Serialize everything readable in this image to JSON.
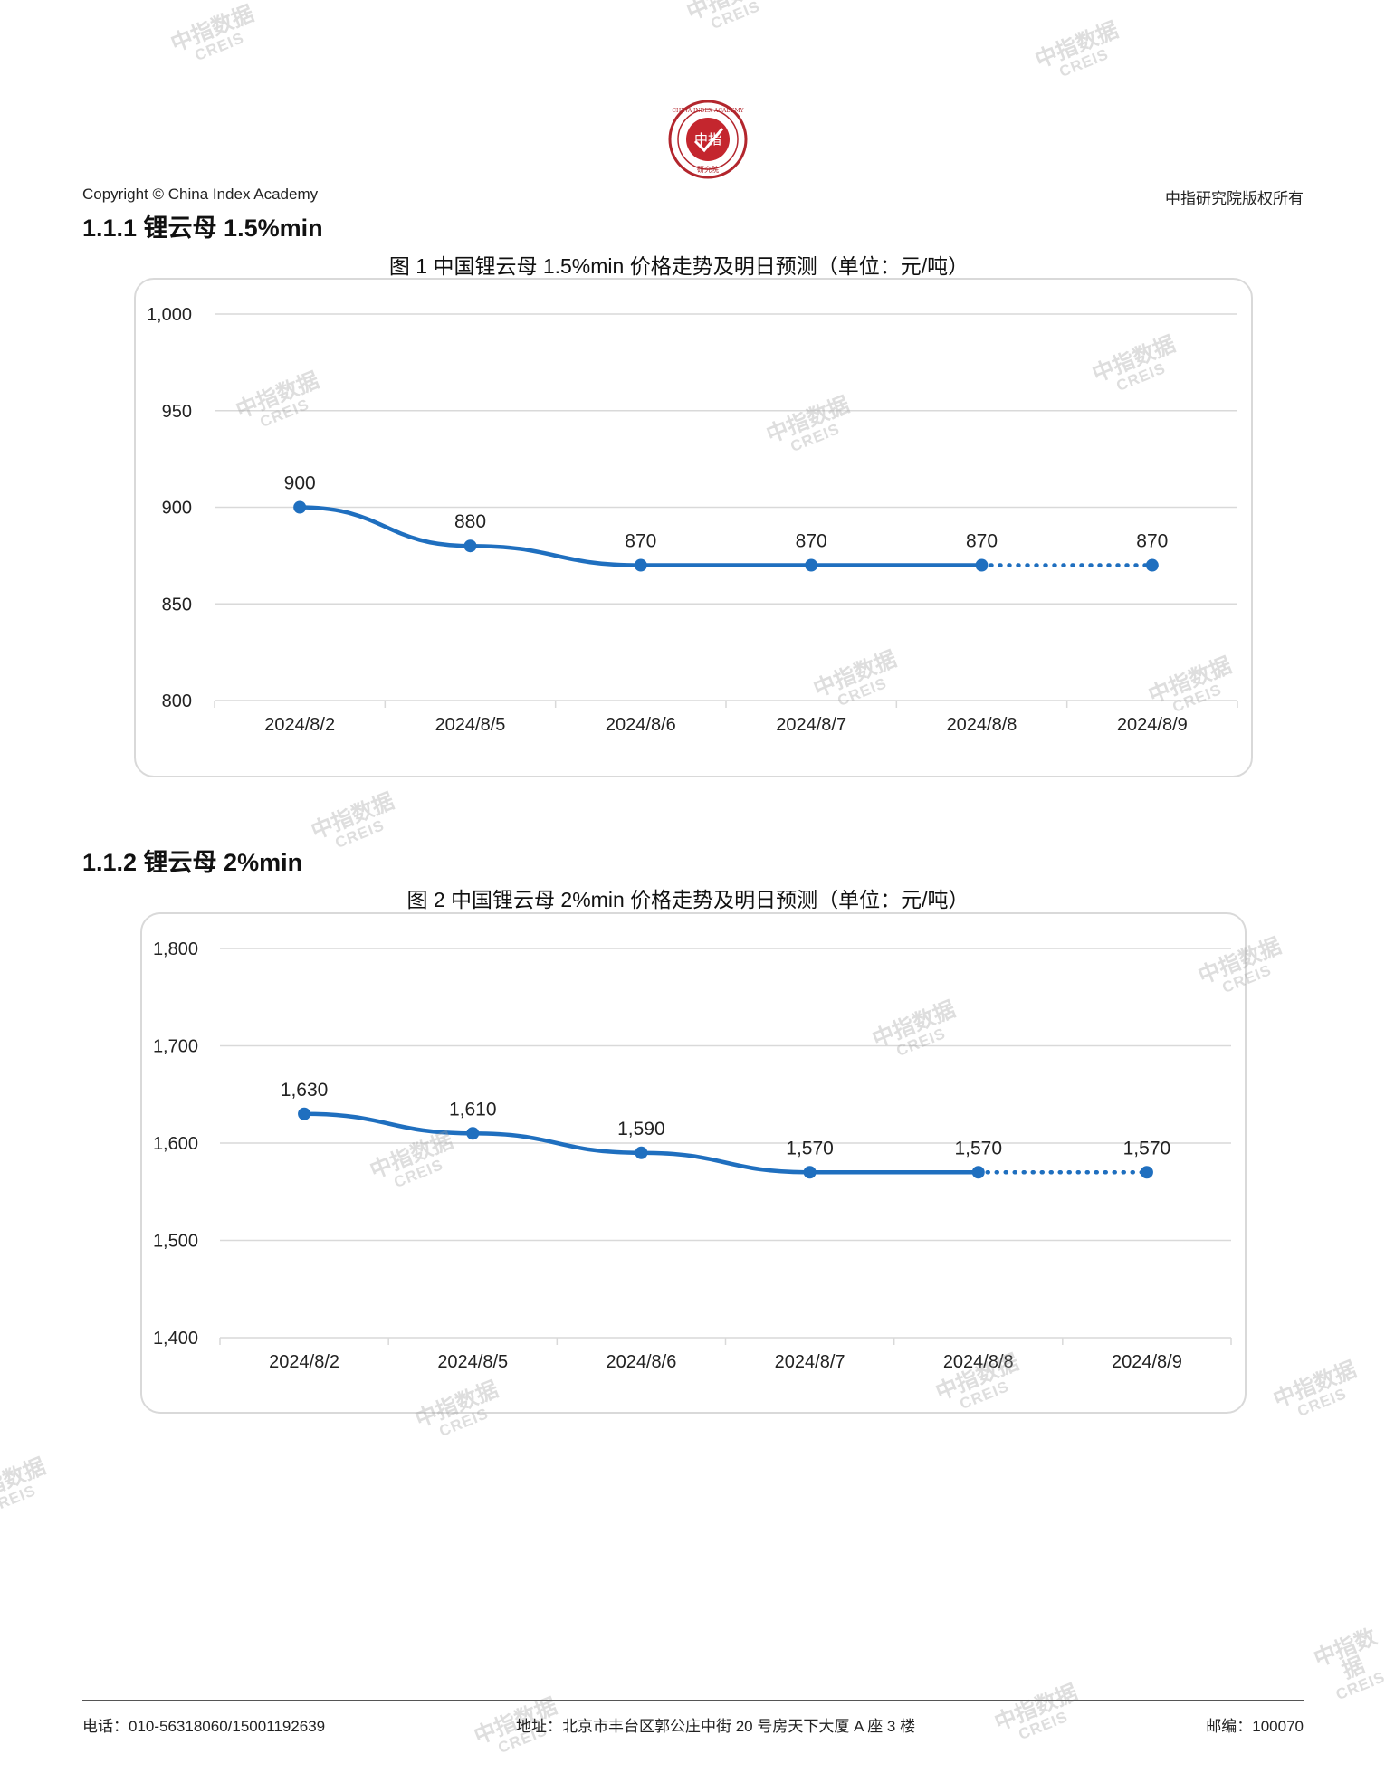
{
  "header": {
    "logo_text_outer": "CHINA INDEX ACADEMY",
    "logo_text_center": "中指",
    "logo_text_bottom": "研究院",
    "copyright": "Copyright © China Index Academy",
    "rights": "中指研究院版权所有"
  },
  "watermark": {
    "cn": "中指数据",
    "en": "CREIS"
  },
  "sections": [
    {
      "heading": "1.1.1 锂云母 1.5%min",
      "caption": "图 1 中国锂云母 1.5%min 价格走势及明日预测（单位：元/吨）"
    },
    {
      "heading": "1.1.2 锂云母 2%min",
      "caption": "图 2 中国锂云母 2%min 价格走势及明日预测（单位：元/吨）"
    }
  ],
  "colors": {
    "line": "#1f6fbf",
    "grid": "#d9d9d9",
    "axis_text": "#222222"
  },
  "chart_data": [
    {
      "type": "line",
      "title": "图 1 中国锂云母 1.5%min 价格走势及明日预测（单位：元/吨）",
      "categories": [
        "2024/8/2",
        "2024/8/5",
        "2024/8/6",
        "2024/8/7",
        "2024/8/8",
        "2024/8/9"
      ],
      "values": [
        900,
        880,
        870,
        870,
        870,
        870
      ],
      "data_labels": [
        "900",
        "880",
        "870",
        "870",
        "870",
        "870"
      ],
      "forecast_from_index": 4,
      "ylim": [
        800,
        1000
      ],
      "yticks": [
        800,
        850,
        900,
        950,
        1000
      ],
      "ytick_labels": [
        "800",
        "850",
        "900",
        "950",
        "1,000"
      ],
      "grid": true,
      "legend": "none"
    },
    {
      "type": "line",
      "title": "图 2 中国锂云母 2%min 价格走势及明日预测（单位：元/吨）",
      "categories": [
        "2024/8/2",
        "2024/8/5",
        "2024/8/6",
        "2024/8/7",
        "2024/8/8",
        "2024/8/9"
      ],
      "values": [
        1630,
        1610,
        1590,
        1570,
        1570,
        1570
      ],
      "data_labels": [
        "1,630",
        "1,610",
        "1,590",
        "1,570",
        "1,570",
        "1,570"
      ],
      "forecast_from_index": 4,
      "ylim": [
        1400,
        1800
      ],
      "yticks": [
        1400,
        1500,
        1600,
        1700,
        1800
      ],
      "ytick_labels": [
        "1,400",
        "1,500",
        "1,600",
        "1,700",
        "1,800"
      ],
      "grid": true,
      "legend": "none"
    }
  ],
  "footer": {
    "phone": "电话：010-56318060/15001192639",
    "address": "地址：北京市丰台区郭公庄中街 20 号房天下大厦 A 座 3 楼",
    "postcode": "邮编：100070"
  }
}
